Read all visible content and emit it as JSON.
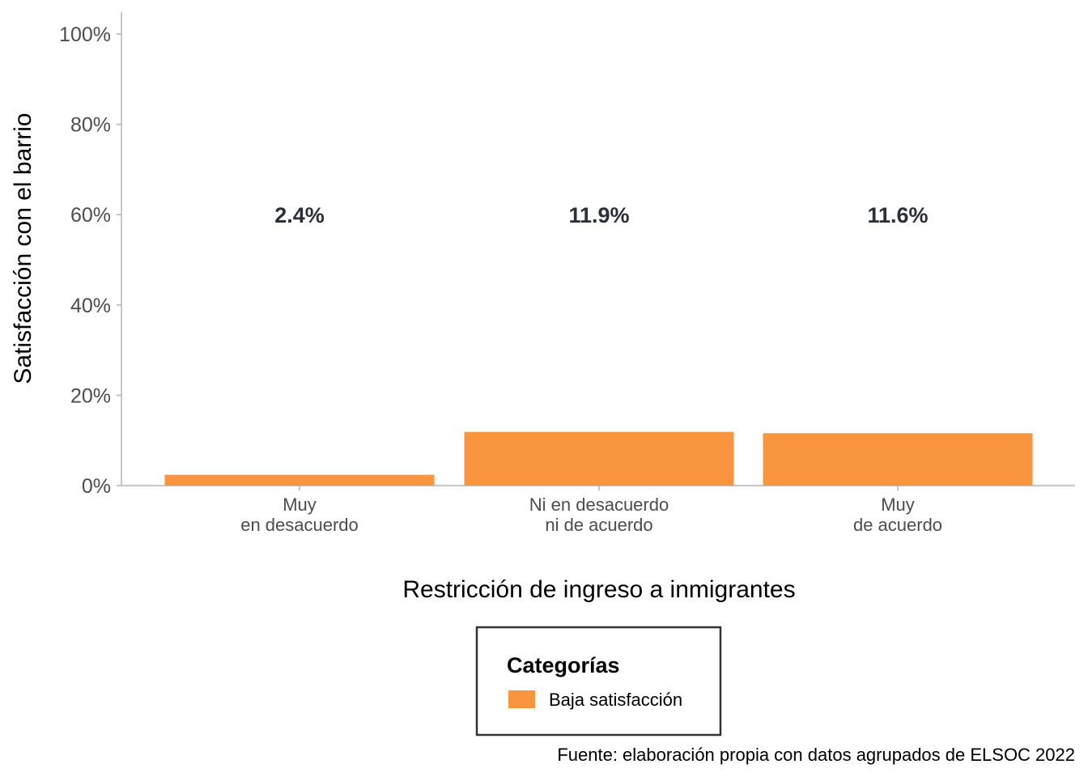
{
  "chart_data": {
    "type": "bar",
    "categories": [
      [
        "Muy",
        "en desacuerdo"
      ],
      [
        "Ni en desacuerdo",
        "ni de acuerdo"
      ],
      [
        "Muy",
        "de acuerdo"
      ]
    ],
    "series": [
      {
        "name": "Baja satisfacción",
        "values": [
          2.4,
          11.9,
          11.6
        ],
        "labels": [
          "2.4%",
          "11.9%",
          "11.6%"
        ],
        "color": "#f9943f"
      }
    ],
    "xlabel": "Restricción de ingreso a inmigrantes",
    "ylabel": "Satisfacción con el barrio",
    "ylim": [
      0,
      100
    ],
    "yticks": [
      "0%",
      "20%",
      "40%",
      "60%",
      "80%",
      "100%"
    ],
    "ytick_values": [
      0,
      20,
      40,
      60,
      80,
      100
    ],
    "data_label_y": 60,
    "grid": false,
    "legend": {
      "title": "Categorías",
      "position": "bottom"
    },
    "caption": "Fuente: elaboración propia con datos agrupados de ELSOC 2022"
  }
}
